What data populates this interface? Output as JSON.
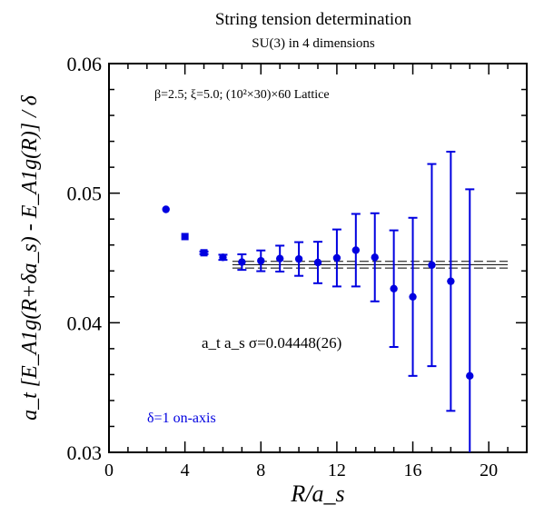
{
  "chart_data": {
    "type": "scatter",
    "title": "String tension determination",
    "subtitle": "SU(3) in 4 dimensions",
    "xlabel": "R/a_s",
    "ylabel": "a_t [E_A1g(R+δa_s) - E_A1g(R)] / δ",
    "xlim": [
      0,
      22
    ],
    "ylim": [
      0.03,
      0.06
    ],
    "xticks": [
      "0",
      "4",
      "8",
      "12",
      "16",
      "20"
    ],
    "yticks": [
      "0.03",
      "0.04",
      "0.05",
      "0.06"
    ],
    "grid": false,
    "annotations": {
      "params": "β=2.5; ξ=5.0; (10²×30)×60 Lattice",
      "fit_result": "a_t a_s σ=0.04448(26)",
      "legend": "δ=1 on-axis"
    },
    "fit": {
      "value": 0.04448,
      "error": 0.00026,
      "x_range": [
        6.5,
        21
      ]
    },
    "series": [
      {
        "color": "#0000e0",
        "points": [
          {
            "x": 3,
            "y": 0.04875,
            "err": 0.0,
            "marker": "circle"
          },
          {
            "x": 4,
            "y": 0.04665,
            "err": 0.0,
            "marker": "square"
          },
          {
            "x": 5,
            "y": 0.0454,
            "err": 0.0001,
            "marker": "square"
          },
          {
            "x": 6,
            "y": 0.04505,
            "err": 0.0002,
            "marker": "circle"
          },
          {
            "x": 7,
            "y": 0.04468,
            "err": 0.0006,
            "marker": "circle"
          },
          {
            "x": 8,
            "y": 0.04478,
            "err": 0.0008,
            "marker": "circle"
          },
          {
            "x": 9,
            "y": 0.04495,
            "err": 0.001,
            "marker": "circle"
          },
          {
            "x": 10,
            "y": 0.04492,
            "err": 0.0013,
            "marker": "circle"
          },
          {
            "x": 11,
            "y": 0.04465,
            "err": 0.0016,
            "marker": "circle"
          },
          {
            "x": 12,
            "y": 0.045,
            "err": 0.0022,
            "marker": "circle"
          },
          {
            "x": 13,
            "y": 0.0456,
            "err": 0.0028,
            "marker": "circle"
          },
          {
            "x": 14,
            "y": 0.04505,
            "err": 0.0034,
            "marker": "circle"
          },
          {
            "x": 15,
            "y": 0.04263,
            "err": 0.0045,
            "marker": "circle"
          },
          {
            "x": 16,
            "y": 0.042,
            "err": 0.0061,
            "marker": "circle"
          },
          {
            "x": 17,
            "y": 0.04445,
            "err": 0.0078,
            "marker": "circle"
          },
          {
            "x": 18,
            "y": 0.0432,
            "err": 0.01,
            "marker": "circle"
          },
          {
            "x": 19,
            "y": 0.0359,
            "err": 0.0144,
            "marker": "circle"
          }
        ]
      }
    ]
  }
}
